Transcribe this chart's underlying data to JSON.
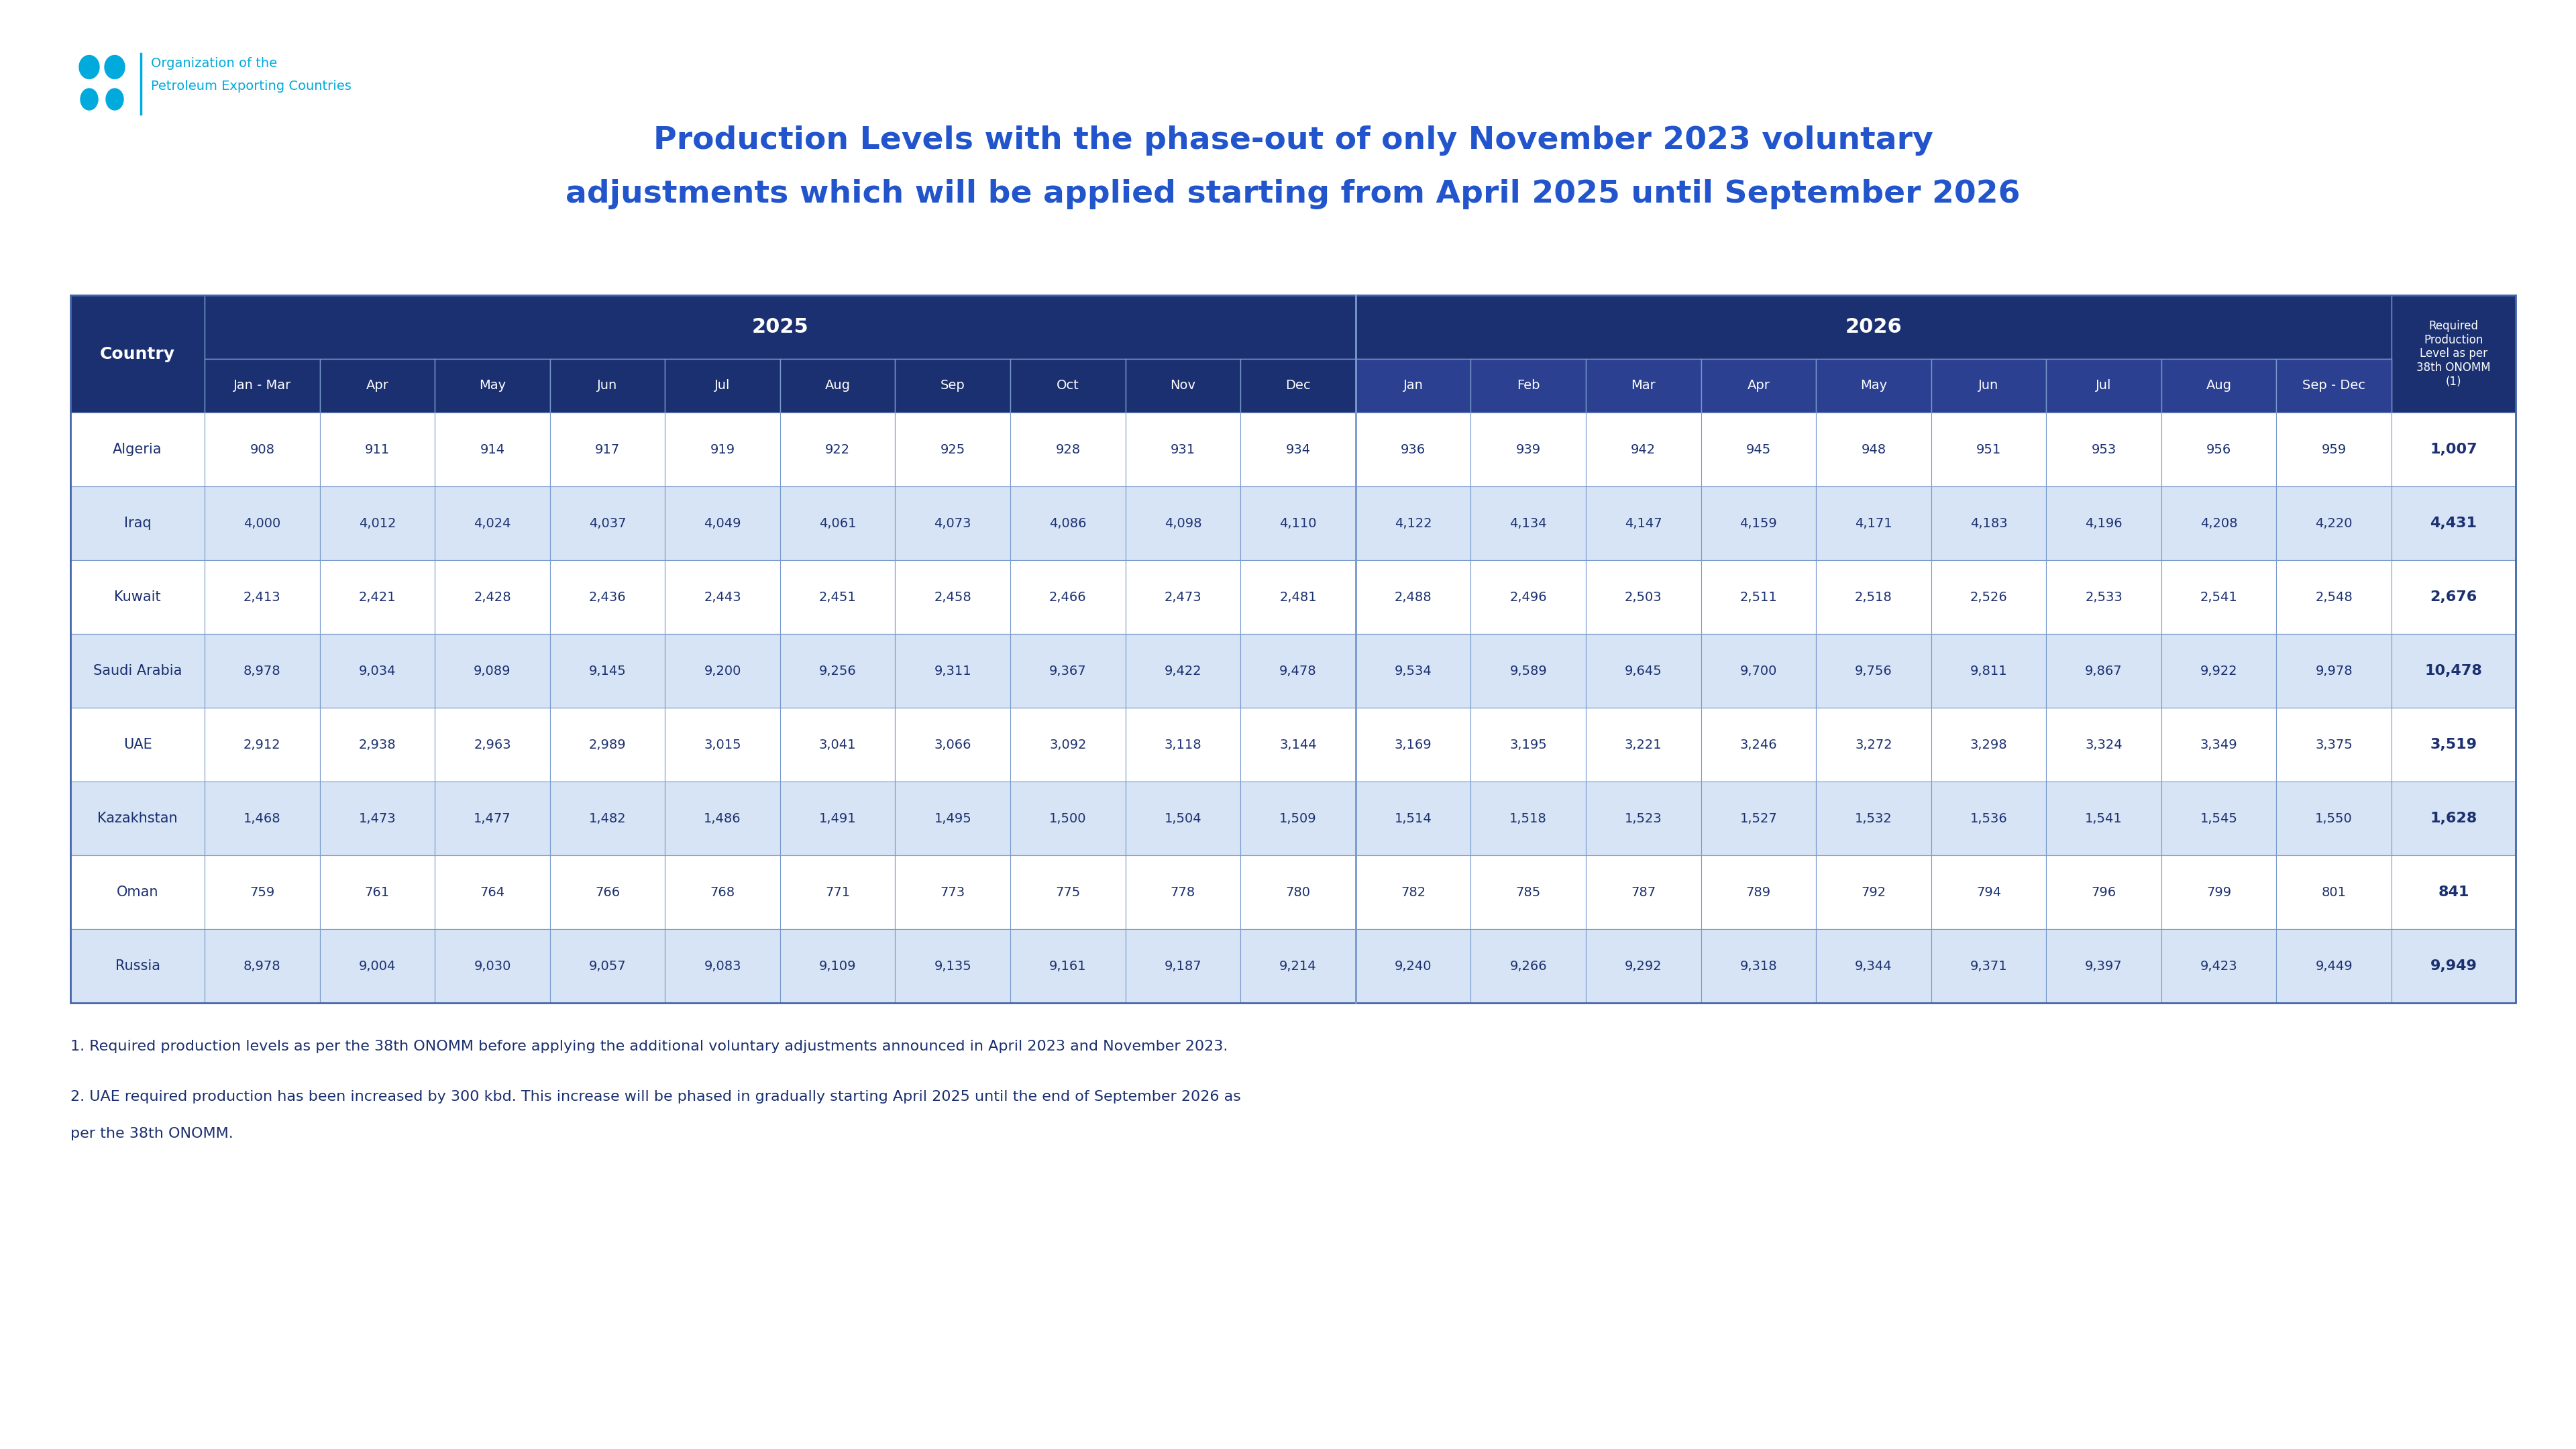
{
  "title_line1": "Production Levels with the phase-out of only November 2023 voluntary",
  "title_line2": "adjustments which will be applied starting from April 2025 until September 2026",
  "title_color": "#2255CC",
  "header_bg": "#1B3070",
  "header_sub_bg": "#2B4090",
  "header_text_color": "#FFFFFF",
  "row_bg_even": "#FFFFFF",
  "row_bg_odd": "#D6E4F5",
  "cell_text_color": "#1B3070",
  "border_color": "#7799CC",
  "note_text_color": "#1B3070",
  "opec_color": "#00AADD",
  "columns_2025": [
    "Jan - Mar",
    "Apr",
    "May",
    "Jun",
    "Jul",
    "Aug",
    "Sep",
    "Oct",
    "Nov",
    "Dec"
  ],
  "columns_2026": [
    "Jan",
    "Feb",
    "Mar",
    "Apr",
    "May",
    "Jun",
    "Jul",
    "Aug",
    "Sep - Dec"
  ],
  "col_required": "Required\nProduction\nLevel as per\n38th ONOMM\n(1)",
  "countries": [
    "Algeria",
    "Iraq",
    "Kuwait",
    "Saudi Arabia",
    "UAE",
    "Kazakhstan",
    "Oman",
    "Russia"
  ],
  "data": {
    "Algeria": [
      908,
      911,
      914,
      917,
      919,
      922,
      925,
      928,
      931,
      934,
      936,
      939,
      942,
      945,
      948,
      951,
      953,
      956,
      959,
      1007
    ],
    "Iraq": [
      4000,
      4012,
      4024,
      4037,
      4049,
      4061,
      4073,
      4086,
      4098,
      4110,
      4122,
      4134,
      4147,
      4159,
      4171,
      4183,
      4196,
      4208,
      4220,
      4431
    ],
    "Kuwait": [
      2413,
      2421,
      2428,
      2436,
      2443,
      2451,
      2458,
      2466,
      2473,
      2481,
      2488,
      2496,
      2503,
      2511,
      2518,
      2526,
      2533,
      2541,
      2548,
      2676
    ],
    "Saudi Arabia": [
      8978,
      9034,
      9089,
      9145,
      9200,
      9256,
      9311,
      9367,
      9422,
      9478,
      9534,
      9589,
      9645,
      9700,
      9756,
      9811,
      9867,
      9922,
      9978,
      10478
    ],
    "UAE": [
      2912,
      2938,
      2963,
      2989,
      3015,
      3041,
      3066,
      3092,
      3118,
      3144,
      3169,
      3195,
      3221,
      3246,
      3272,
      3298,
      3324,
      3349,
      3375,
      3519
    ],
    "Kazakhstan": [
      1468,
      1473,
      1477,
      1482,
      1486,
      1491,
      1495,
      1500,
      1504,
      1509,
      1514,
      1518,
      1523,
      1527,
      1532,
      1536,
      1541,
      1545,
      1550,
      1628
    ],
    "Oman": [
      759,
      761,
      764,
      766,
      768,
      771,
      773,
      775,
      778,
      780,
      782,
      785,
      787,
      789,
      792,
      794,
      796,
      799,
      801,
      841
    ],
    "Russia": [
      8978,
      9004,
      9030,
      9057,
      9083,
      9109,
      9135,
      9161,
      9187,
      9214,
      9240,
      9266,
      9292,
      9318,
      9344,
      9371,
      9397,
      9423,
      9449,
      9949
    ]
  },
  "footnote1": "1. Required production levels as per the 38th ONOMM before applying the additional voluntary adjustments announced in April 2023 and November 2023.",
  "footnote2": "2. UAE required production has been increased by 300 kbd. This increase will be phased in gradually starting April 2025 until the end of September 2026 as",
  "footnote3": "per the 38th ONOMM."
}
